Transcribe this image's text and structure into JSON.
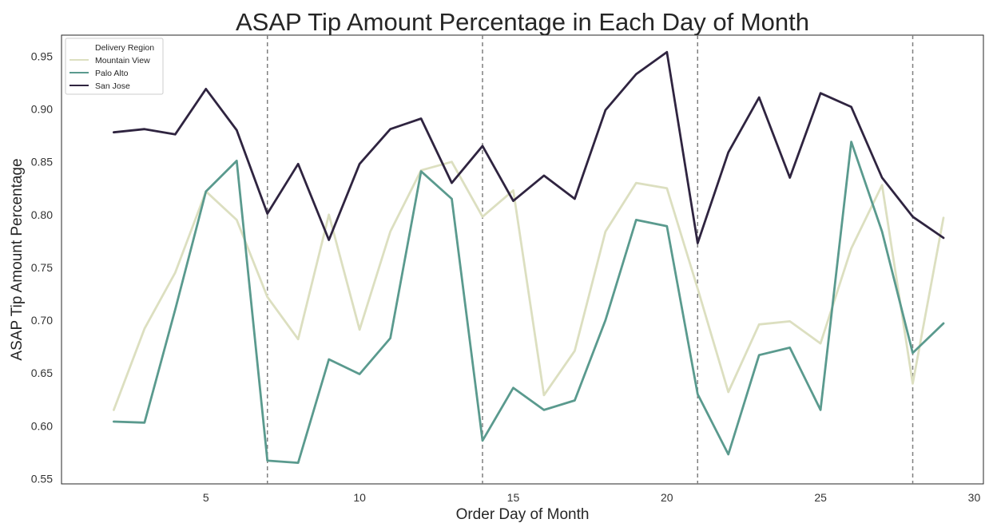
{
  "chart_data": {
    "type": "line",
    "title": "ASAP Tip Amount Percentage in Each Day of Month",
    "xlabel": "Order Day of Month",
    "ylabel": "ASAP Tip Amount Percentage",
    "xlim": [
      0.3,
      30.3
    ],
    "ylim": [
      0.545,
      0.97
    ],
    "xticks": [
      "5",
      "10",
      "15",
      "20",
      "25",
      "30"
    ],
    "yticks": [
      "0.55",
      "0.60",
      "0.65",
      "0.70",
      "0.75",
      "0.80",
      "0.85",
      "0.90",
      "0.95"
    ],
    "vlines": [
      7,
      14,
      21,
      28
    ],
    "grid": false,
    "legend": {
      "title": "Delivery Region",
      "placement": "top-left",
      "entries": [
        "Mountain View",
        "Palo Alto",
        "San Jose"
      ]
    },
    "x": [
      2,
      3,
      4,
      5,
      6,
      7,
      8,
      9,
      10,
      11,
      12,
      13,
      14,
      15,
      16,
      17,
      18,
      19,
      20,
      21,
      22,
      23,
      24,
      25,
      26,
      27,
      28,
      29
    ],
    "series": [
      {
        "name": "Mountain View",
        "color": "#dcdfc0",
        "values": [
          0.615,
          0.692,
          0.745,
          0.822,
          0.795,
          0.722,
          0.682,
          0.8,
          0.691,
          0.784,
          0.842,
          0.85,
          0.798,
          0.823,
          0.629,
          0.671,
          0.784,
          0.83,
          0.825,
          0.73,
          0.632,
          0.696,
          0.699,
          0.678,
          0.768,
          0.828,
          0.64,
          0.797
        ]
      },
      {
        "name": "Palo Alto",
        "color": "#5a9a8e",
        "values": [
          0.604,
          0.603,
          0.71,
          0.822,
          0.851,
          0.567,
          0.565,
          0.663,
          0.649,
          0.683,
          0.841,
          0.815,
          0.586,
          0.636,
          0.615,
          0.624,
          0.7,
          0.795,
          0.789,
          0.63,
          0.573,
          0.667,
          0.674,
          0.615,
          0.869,
          0.784,
          0.669,
          0.697
        ]
      },
      {
        "name": "San Jose",
        "color": "#2f2440",
        "values": [
          0.878,
          0.881,
          0.876,
          0.919,
          0.88,
          0.801,
          0.848,
          0.776,
          0.848,
          0.881,
          0.891,
          0.83,
          0.865,
          0.813,
          0.837,
          0.815,
          0.899,
          0.933,
          0.954,
          0.773,
          0.859,
          0.911,
          0.835,
          0.915,
          0.902,
          0.835,
          0.798,
          0.778
        ]
      }
    ]
  }
}
